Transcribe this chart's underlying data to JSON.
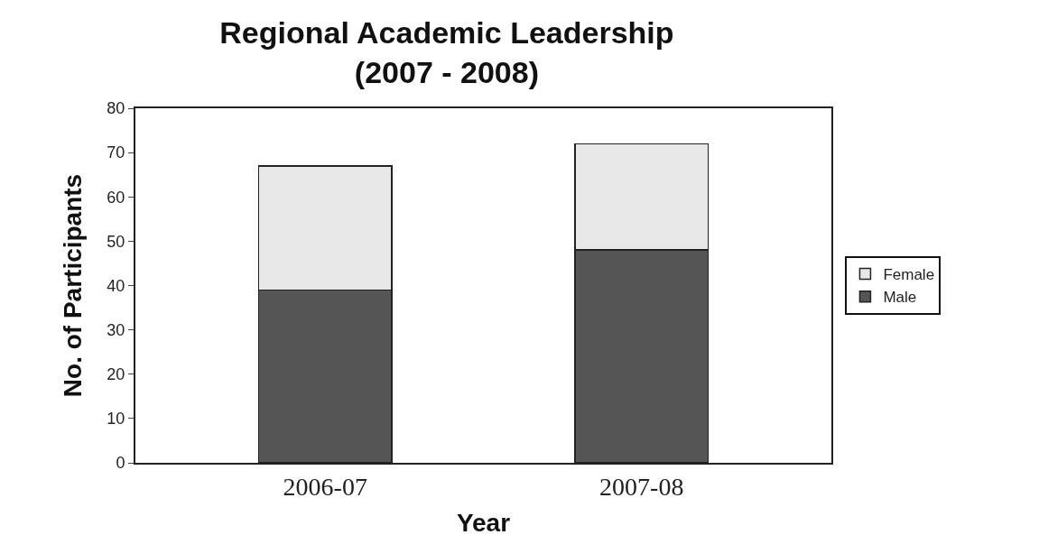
{
  "chart_data": {
    "type": "bar",
    "title": "Regional Academic Leadership\n(2007 - 2008)",
    "xlabel": "Year",
    "ylabel": "No. of Participants",
    "categories": [
      "2006-07",
      "2007-08"
    ],
    "series": [
      {
        "name": "Male",
        "color": "#555555",
        "values": [
          39,
          48
        ]
      },
      {
        "name": "Female",
        "color": "#e8e8e8",
        "values": [
          28,
          24
        ]
      }
    ],
    "stacked": true,
    "ylim": [
      0,
      80
    ],
    "yticks": [
      0,
      10,
      20,
      30,
      40,
      50,
      60,
      70,
      80
    ],
    "grid": false,
    "legend": "right"
  }
}
